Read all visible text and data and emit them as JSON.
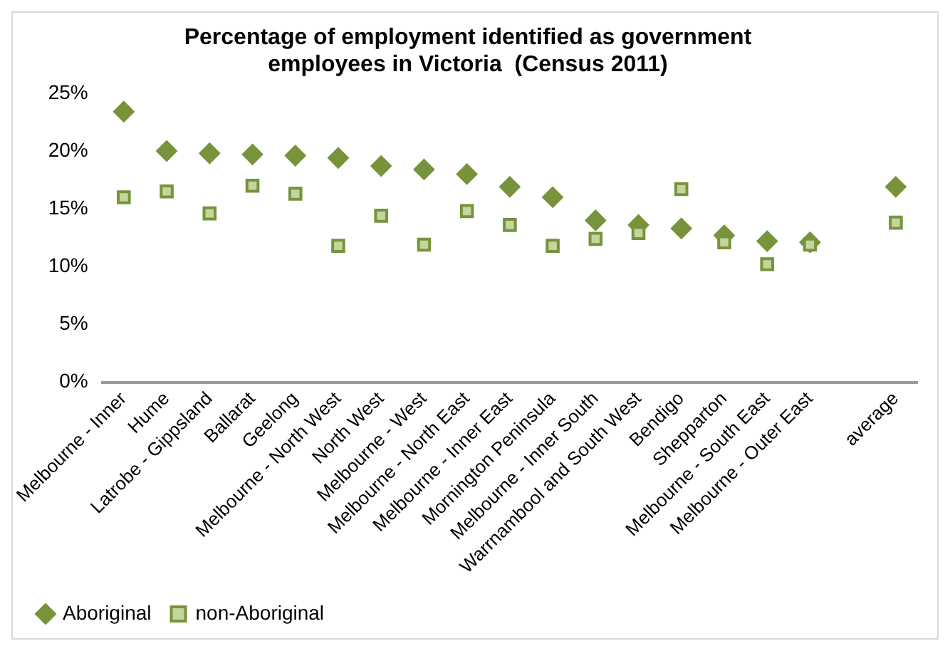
{
  "chart_data": {
    "type": "scatter",
    "title": "Percentage of employment identified as government employees in Victoria  (Census 2011)",
    "categories": [
      "Melbourne - Inner",
      "Hume",
      "Latrobe - Gippsland",
      "Ballarat",
      "Geelong",
      "Melbourne - North West",
      "North West",
      "Melbourne - West",
      "Melbourne - North East",
      "Melbourne - Inner East",
      "Mornington Peninsula",
      "Melbourne - Inner South",
      "Warrnambool and South West",
      "Bendigo",
      "Shepparton",
      "Melbourne - South East",
      "Melbourne - Outer East",
      null,
      "average"
    ],
    "series": [
      {
        "name": "Aboriginal",
        "color": "#77933c",
        "marker": "diamond",
        "values": [
          23.4,
          20.0,
          19.8,
          19.7,
          19.6,
          19.4,
          18.7,
          18.4,
          18.0,
          16.9,
          16.0,
          14.0,
          13.6,
          13.3,
          12.7,
          12.2,
          12.1,
          null,
          16.9
        ]
      },
      {
        "name": "non-Aboriginal",
        "color": "#c3d69b",
        "marker": "square",
        "values": [
          16.0,
          16.5,
          14.6,
          17.0,
          16.3,
          11.8,
          14.4,
          11.9,
          14.8,
          13.6,
          11.8,
          12.4,
          12.9,
          16.7,
          12.1,
          10.2,
          11.9,
          null,
          13.8
        ]
      }
    ],
    "ylim": [
      0,
      25
    ],
    "yticks": [
      {
        "value": 0,
        "label": "0%"
      },
      {
        "value": 5,
        "label": "5%"
      },
      {
        "value": 10,
        "label": "10%"
      },
      {
        "value": 15,
        "label": "15%"
      },
      {
        "value": 20,
        "label": "20%"
      },
      {
        "value": 25,
        "label": "25%"
      }
    ],
    "grid": false,
    "legend": "bottom left"
  }
}
